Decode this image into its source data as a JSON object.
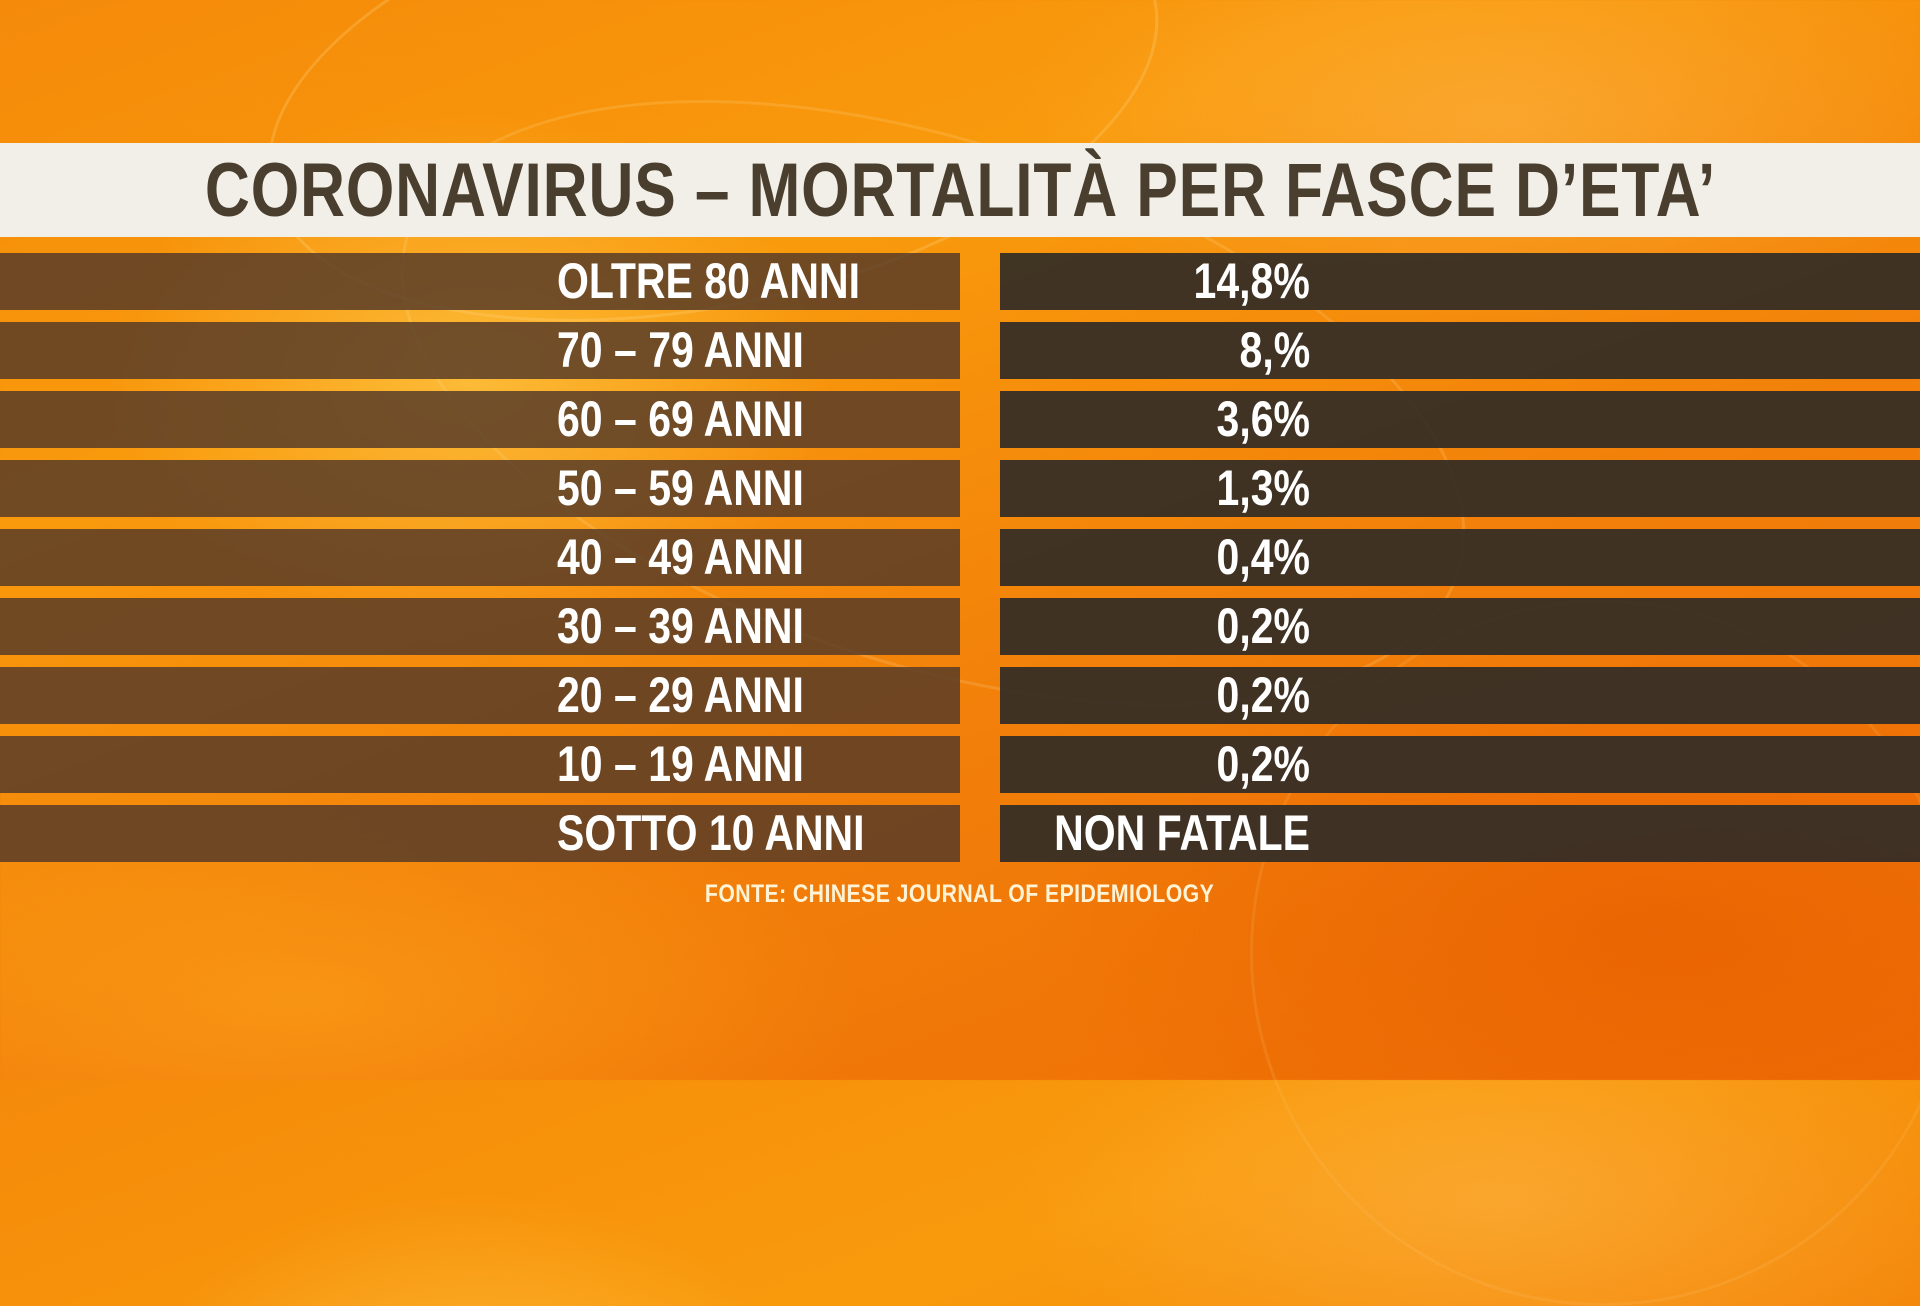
{
  "title": "CORONAVIRUS – MORTALITÀ PER FASCE D’ETA’",
  "source": "FONTE: CHINESE JOURNAL OF EPIDEMIOLOGY",
  "colors": {
    "background": "#f58a0a",
    "title_bar": "#f1efe8",
    "title_text": "#4a3f2e",
    "label_cell": "#523828",
    "value_cell": "#322c26",
    "cell_text": "#ffffff"
  },
  "chart_data": {
    "type": "table",
    "title": "CORONAVIRUS – MORTALITÀ PER FASCE D’ETA’",
    "columns": [
      "",
      ""
    ],
    "rows": [
      {
        "label": "OLTRE 80 ANNI",
        "value": "14,8%"
      },
      {
        "label": "70 – 79 ANNI",
        "value": "8,%"
      },
      {
        "label": "60 – 69 ANNI",
        "value": "3,6%"
      },
      {
        "label": "50 – 59 ANNI",
        "value": "1,3%"
      },
      {
        "label": "40 – 49 ANNI",
        "value": "0,4%"
      },
      {
        "label": "30 – 39 ANNI",
        "value": "0,2%"
      },
      {
        "label": "20 – 29 ANNI",
        "value": "0,2%"
      },
      {
        "label": "10 – 19 ANNI",
        "value": "0,2%"
      },
      {
        "label": "SOTTO 10 ANNI",
        "value": "NON FATALE"
      }
    ],
    "source": "FONTE: CHINESE JOURNAL OF EPIDEMIOLOGY"
  }
}
